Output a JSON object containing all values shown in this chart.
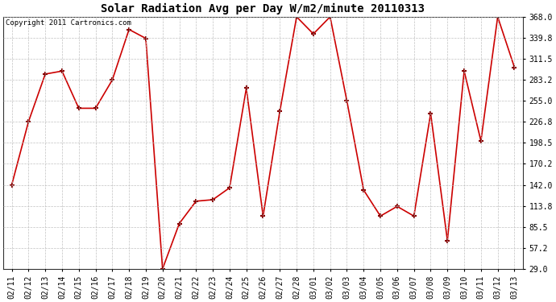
{
  "title": "Solar Radiation Avg per Day W/m2/minute 20110313",
  "copyright": "Copyright 2011 Cartronics.com",
  "dates": [
    "02/11",
    "02/12",
    "02/13",
    "02/14",
    "02/15",
    "02/16",
    "02/17",
    "02/18",
    "02/19",
    "02/20",
    "02/21",
    "02/22",
    "02/23",
    "02/24",
    "02/25",
    "02/26",
    "02/27",
    "02/28",
    "03/01",
    "03/02",
    "03/03",
    "03/04",
    "03/05",
    "03/06",
    "03/07",
    "03/08",
    "03/09",
    "03/10",
    "03/11",
    "03/12",
    "03/13"
  ],
  "values": [
    142,
    227,
    291,
    295,
    245,
    245,
    283,
    351,
    339,
    29,
    90,
    120,
    122,
    138,
    272,
    100,
    241,
    368,
    345,
    368,
    255,
    135,
    100,
    113,
    100,
    238,
    67,
    295,
    201,
    368,
    300
  ],
  "yticks": [
    29.0,
    57.2,
    85.5,
    113.8,
    142.0,
    170.2,
    198.5,
    226.8,
    255.0,
    283.2,
    311.5,
    339.8,
    368.0
  ],
  "ymin": 29.0,
  "ymax": 368.0,
  "line_color": "#cc0000",
  "marker_color": "#880000",
  "bg_color": "#ffffff",
  "plot_bg_color": "#ffffff",
  "grid_color": "#bbbbbb",
  "title_fontsize": 10,
  "copyright_fontsize": 6.5,
  "tick_fontsize": 7.0
}
